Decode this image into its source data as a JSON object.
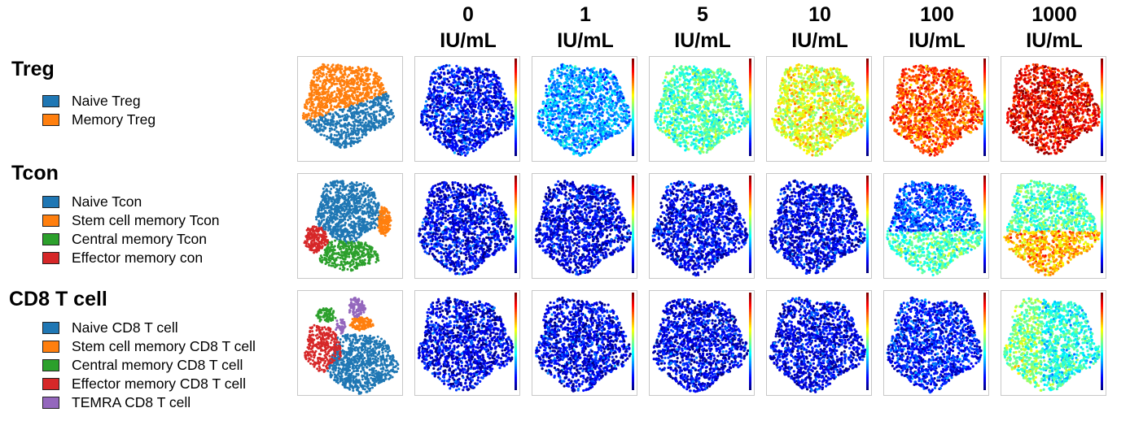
{
  "columns": [
    {
      "dose": "0",
      "unit": "IU/mL"
    },
    {
      "dose": "1",
      "unit": "IU/mL"
    },
    {
      "dose": "5",
      "unit": "IU/mL"
    },
    {
      "dose": "10",
      "unit": "IU/mL"
    },
    {
      "dose": "100",
      "unit": "IU/mL"
    },
    {
      "dose": "1000",
      "unit": "IU/mL"
    }
  ],
  "rows": [
    {
      "title": "Treg",
      "legend": [
        {
          "label": "Naive Treg",
          "color": "#1f77b4"
        },
        {
          "label": "Memory Treg",
          "color": "#ff7f0e"
        }
      ],
      "cluster_map": "treg",
      "heat_levels": [
        0.12,
        0.28,
        0.45,
        0.6,
        0.8,
        0.9
      ]
    },
    {
      "title": "Tcon",
      "legend": [
        {
          "label": "Naive Tcon",
          "color": "#1f77b4"
        },
        {
          "label": "Stem cell memory Tcon",
          "color": "#ff7f0e"
        },
        {
          "label": "Central memory Tcon",
          "color": "#2ca02c"
        },
        {
          "label": "Effector memory con",
          "color": "#d62728"
        }
      ],
      "cluster_map": "tcon",
      "heat_levels": [
        0.1,
        0.1,
        0.1,
        0.1,
        0.2,
        0.45
      ]
    },
    {
      "title": "CD8 T cell",
      "legend": [
        {
          "label": "Naive CD8 T cell",
          "color": "#1f77b4"
        },
        {
          "label": "Stem cell memory CD8 T cell",
          "color": "#ff7f0e"
        },
        {
          "label": "Central memory CD8 T cell",
          "color": "#2ca02c"
        },
        {
          "label": "Effector memory CD8 T cell",
          "color": "#d62728"
        },
        {
          "label": "TEMRA CD8 T cell",
          "color": "#9467bd"
        }
      ],
      "cluster_map": "cd8",
      "heat_levels": [
        0.1,
        0.1,
        0.1,
        0.1,
        0.14,
        0.4
      ]
    }
  ],
  "colorscale": [
    "#00007f",
    "#0000ff",
    "#007fff",
    "#00ffff",
    "#7fff7f",
    "#ffff00",
    "#ff7f00",
    "#ff0000",
    "#7f0000"
  ]
}
